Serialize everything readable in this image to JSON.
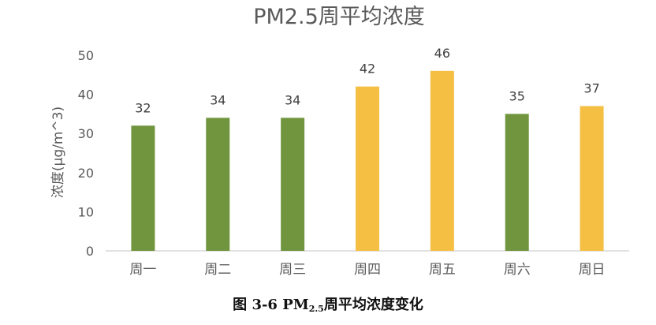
{
  "chart_data": {
    "type": "bar",
    "title": "PM2.5周平均浓度",
    "ylabel": "浓度(μg/m^3)",
    "xlabel": "",
    "categories": [
      "周一",
      "周二",
      "周三",
      "周四",
      "周五",
      "周六",
      "周日"
    ],
    "values": [
      32,
      34,
      34,
      42,
      46,
      35,
      37
    ],
    "bar_colors": [
      "#70953e",
      "#70953e",
      "#70953e",
      "#f4bf43",
      "#f4bf43",
      "#70953e",
      "#f4bf43"
    ],
    "ylim": [
      0,
      50
    ],
    "yticks": [
      0,
      10,
      20,
      30,
      40,
      50
    ],
    "grid": false,
    "data_labels": true
  },
  "caption": {
    "prefix": "图 3-6 PM",
    "subscript": "2.5",
    "suffix": "周平均浓度变化"
  }
}
